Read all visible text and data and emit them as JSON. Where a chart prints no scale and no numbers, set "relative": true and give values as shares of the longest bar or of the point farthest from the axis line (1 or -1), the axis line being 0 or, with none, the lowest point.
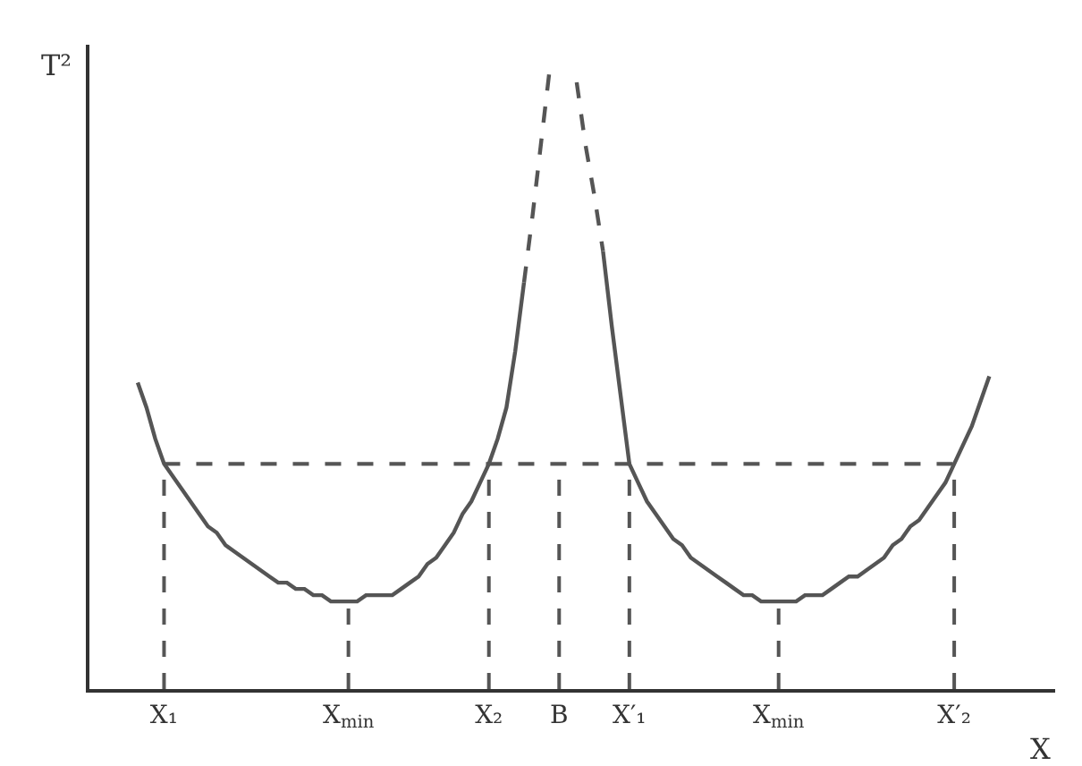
{
  "chart_data": {
    "type": "line",
    "relative": true,
    "xlabel": "X",
    "ylabel": "T²",
    "categories": [
      null,
      null,
      null,
      null,
      null,
      null,
      null,
      null,
      "X₁",
      null,
      null,
      null,
      null,
      null,
      null,
      null,
      null,
      null,
      null,
      null,
      null,
      null,
      null,
      null,
      null,
      null,
      null,
      null,
      null,
      "X$_{min}$",
      null,
      null,
      null,
      null,
      null,
      null,
      null,
      null,
      null,
      null,
      null,
      null,
      null,
      null,
      null,
      "X₂",
      null,
      null,
      null,
      null,
      null,
      null,
      null,
      "B",
      null,
      null,
      null,
      null,
      null,
      null,
      null,
      "X′₁",
      null,
      null,
      null,
      null,
      null,
      null,
      null,
      null,
      null,
      null,
      null,
      null,
      null,
      null,
      null,
      null,
      "X$_{min}$",
      null,
      null,
      null,
      null,
      null,
      null,
      null,
      null,
      null,
      null,
      null,
      null,
      null,
      null,
      null,
      null,
      null,
      null,
      null,
      "X′₂",
      null,
      null,
      null,
      null,
      null,
      null,
      null,
      null,
      null,
      null,
      null
    ],
    "tick_labels": "x",
    "grid": false,
    "marker": "none",
    "series": [
      {
        "color": "#555555",
        "line_style": "solid",
        "values": [
          null,
          null,
          null,
          null,
          null,
          0.49,
          0.45,
          0.4,
          0.36,
          0.34,
          0.32,
          0.3,
          0.28,
          0.26,
          0.25,
          0.23,
          0.22,
          0.21,
          0.2,
          0.19,
          0.18,
          0.17,
          0.17,
          0.16,
          0.16,
          0.15,
          0.15,
          0.14,
          0.14,
          0.14,
          0.14,
          0.15,
          0.15,
          0.15,
          0.15,
          0.16,
          0.17,
          0.18,
          0.2,
          0.21,
          0.23,
          0.25,
          0.28,
          0.3,
          0.33,
          0.36,
          0.4,
          0.45,
          0.54,
          0.65,
          null,
          null,
          null,
          null,
          null,
          null,
          null,
          null,
          null,
          null,
          null,
          null,
          null,
          null,
          null,
          null,
          null,
          null,
          null,
          null,
          null,
          null,
          null,
          null,
          null,
          null,
          null,
          null,
          null,
          null,
          null,
          null,
          null,
          null,
          null,
          null,
          null,
          null,
          null,
          null,
          null,
          null,
          null,
          null,
          null,
          null,
          null,
          null,
          null,
          null,
          null,
          null,
          null,
          null,
          null,
          null,
          null,
          null,
          null,
          null
        ]
      },
      {
        "color": "#555555",
        "line_style": "dashed",
        "values": [
          null,
          null,
          null,
          null,
          null,
          null,
          null,
          null,
          null,
          null,
          null,
          null,
          null,
          null,
          null,
          null,
          null,
          null,
          null,
          null,
          null,
          null,
          null,
          null,
          null,
          null,
          null,
          null,
          null,
          null,
          null,
          null,
          null,
          null,
          null,
          null,
          null,
          null,
          null,
          null,
          null,
          null,
          null,
          null,
          null,
          null,
          null,
          null,
          null,
          0.65,
          0.76,
          0.88,
          1,
          null,
          null,
          null,
          null,
          null,
          null,
          null,
          null,
          null,
          null,
          null,
          null,
          null,
          null,
          null,
          null,
          null,
          null,
          null,
          null,
          null,
          null,
          null,
          null,
          null,
          null,
          null,
          null,
          null,
          null,
          null,
          null,
          null,
          null,
          null,
          null,
          null,
          null,
          null,
          null,
          null,
          null,
          null,
          null,
          null,
          null,
          null,
          null,
          null,
          null,
          null,
          null,
          null,
          null,
          null,
          null,
          null
        ]
      },
      {
        "color": "#555555",
        "line_style": "dashed",
        "values": [
          null,
          null,
          null,
          null,
          null,
          null,
          null,
          null,
          null,
          null,
          null,
          null,
          null,
          null,
          null,
          null,
          null,
          null,
          null,
          null,
          null,
          null,
          null,
          null,
          null,
          null,
          null,
          null,
          null,
          null,
          null,
          null,
          null,
          null,
          null,
          null,
          null,
          null,
          null,
          null,
          null,
          null,
          null,
          null,
          null,
          null,
          null,
          null,
          null,
          null,
          null,
          null,
          null,
          null,
          null,
          0.97,
          0.87,
          0.79,
          0.7,
          null,
          null,
          null,
          null,
          null,
          null,
          null,
          null,
          null,
          null,
          null,
          null,
          null,
          null,
          null,
          null,
          null,
          null,
          null,
          null,
          null,
          null,
          null,
          null,
          null,
          null,
          null,
          null,
          null,
          null,
          null,
          null,
          null,
          null,
          null,
          null,
          null,
          null,
          null,
          null,
          null,
          null,
          null,
          null,
          null,
          null,
          null,
          null,
          null,
          null,
          null
        ]
      },
      {
        "color": "#555555",
        "line_style": "solid",
        "values": [
          null,
          null,
          null,
          null,
          null,
          null,
          null,
          null,
          null,
          null,
          null,
          null,
          null,
          null,
          null,
          null,
          null,
          null,
          null,
          null,
          null,
          null,
          null,
          null,
          null,
          null,
          null,
          null,
          null,
          null,
          null,
          null,
          null,
          null,
          null,
          null,
          null,
          null,
          null,
          null,
          null,
          null,
          null,
          null,
          null,
          null,
          null,
          null,
          null,
          null,
          null,
          null,
          null,
          null,
          null,
          null,
          null,
          null,
          0.7,
          0.58,
          0.47,
          0.36,
          0.33,
          0.3,
          0.28,
          0.26,
          0.24,
          0.23,
          0.21,
          0.2,
          0.19,
          0.18,
          0.17,
          0.16,
          0.15,
          0.15,
          0.14,
          0.14,
          0.14,
          0.14,
          0.14,
          0.15,
          0.15,
          0.15,
          0.16,
          0.17,
          0.18,
          0.18,
          0.19,
          0.2,
          0.21,
          0.23,
          0.24,
          0.26,
          0.27,
          0.29,
          0.31,
          0.33,
          0.36,
          0.39,
          0.42,
          0.46,
          0.5,
          null,
          null,
          null,
          null,
          null,
          null,
          null
        ]
      },
      {
        "color": "#555555",
        "line_style": "dashed",
        "values": [
          null,
          null,
          null,
          null,
          null,
          null,
          null,
          null,
          0.36,
          0.36,
          0.36,
          0.36,
          0.36,
          0.36,
          0.36,
          0.36,
          0.36,
          0.36,
          0.36,
          0.36,
          0.36,
          0.36,
          0.36,
          0.36,
          0.36,
          0.36,
          0.36,
          0.36,
          0.36,
          0.36,
          0.36,
          0.36,
          0.36,
          0.36,
          0.36,
          0.36,
          0.36,
          0.36,
          0.36,
          0.36,
          0.36,
          0.36,
          0.36,
          0.36,
          0.36,
          0.36,
          0.36,
          0.36,
          0.36,
          0.36,
          0.36,
          0.36,
          0.36,
          0.36,
          0.36,
          0.36,
          0.36,
          0.36,
          0.36,
          0.36,
          0.36,
          0.36,
          0.36,
          0.36,
          0.36,
          0.36,
          0.36,
          0.36,
          0.36,
          0.36,
          0.36,
          0.36,
          0.36,
          0.36,
          0.36,
          0.36,
          0.36,
          0.36,
          0.36,
          0.36,
          0.36,
          0.36,
          0.36,
          0.36,
          0.36,
          0.36,
          0.36,
          0.36,
          0.36,
          0.36,
          0.36,
          0.36,
          0.36,
          0.36,
          0.36,
          0.36,
          0.36,
          0.36,
          0.36,
          null,
          null,
          null,
          null,
          null,
          null,
          null,
          null,
          null,
          null,
          null
        ]
      }
    ]
  }
}
